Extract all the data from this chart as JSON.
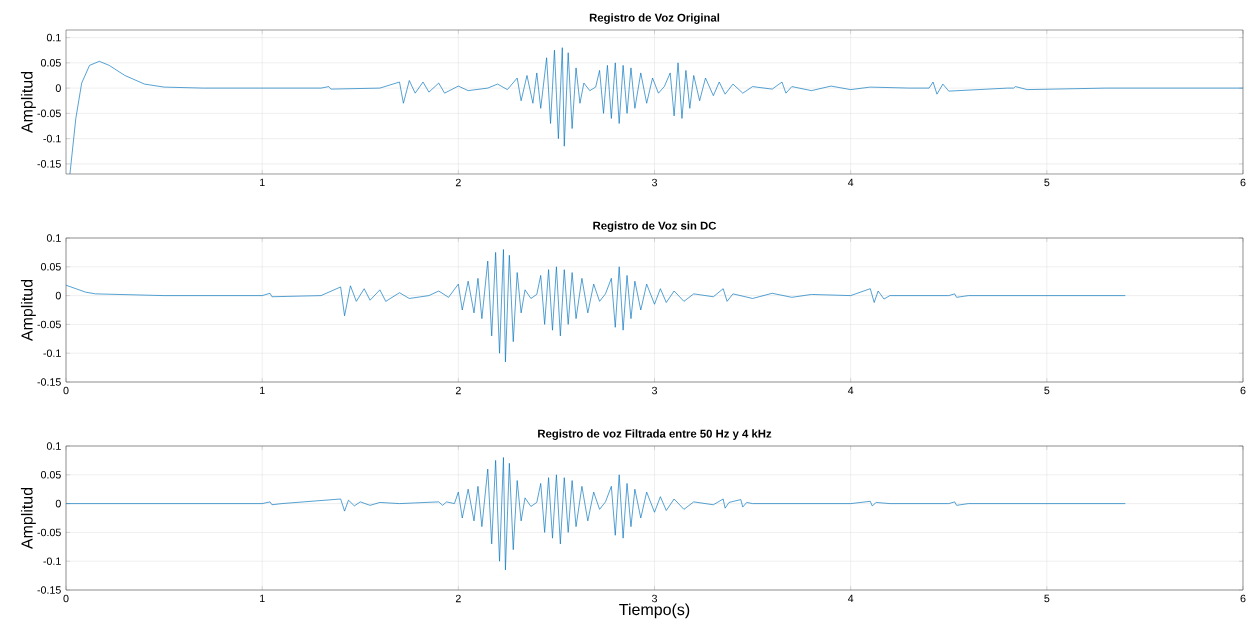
{
  "chart_data": [
    {
      "type": "line",
      "title": "Registro de Voz Original",
      "ylabel": "Amplitud",
      "color": "#0072bd",
      "grid": true,
      "xlim": [
        0,
        6
      ],
      "ylim": [
        -0.17,
        0.115
      ],
      "xticks": [
        1,
        2,
        3,
        4,
        5,
        6
      ],
      "yticks": [
        -0.15,
        -0.1,
        -0.05,
        0,
        0.05,
        0.1
      ],
      "x": [
        0.02,
        0.05,
        0.08,
        0.12,
        0.17,
        0.22,
        0.3,
        0.4,
        0.5,
        0.7,
        1.3,
        1.34,
        1.35,
        1.6,
        1.7,
        1.72,
        1.75,
        1.78,
        1.82,
        1.85,
        1.9,
        1.93,
        2.0,
        2.05,
        2.15,
        2.2,
        2.25,
        2.3,
        2.32,
        2.35,
        2.38,
        2.4,
        2.42,
        2.45,
        2.47,
        2.49,
        2.51,
        2.53,
        2.54,
        2.56,
        2.58,
        2.6,
        2.62,
        2.64,
        2.67,
        2.7,
        2.72,
        2.74,
        2.76,
        2.78,
        2.8,
        2.82,
        2.84,
        2.86,
        2.88,
        2.9,
        2.93,
        2.96,
        2.99,
        3.02,
        3.05,
        3.08,
        3.1,
        3.12,
        3.14,
        3.16,
        3.18,
        3.2,
        3.23,
        3.26,
        3.3,
        3.33,
        3.36,
        3.4,
        3.45,
        3.5,
        3.6,
        3.65,
        3.67,
        3.7,
        3.8,
        3.9,
        4.0,
        4.1,
        4.3,
        4.4,
        4.42,
        4.44,
        4.47,
        4.5,
        4.8,
        4.83,
        4.84,
        4.9,
        5.3,
        5.7,
        6.0
      ],
      "values": [
        -0.17,
        -0.06,
        0.01,
        0.045,
        0.053,
        0.045,
        0.025,
        0.008,
        0.002,
        0,
        0,
        0.003,
        -0.002,
        0,
        0.012,
        -0.03,
        0.015,
        -0.01,
        0.012,
        -0.008,
        0.01,
        -0.01,
        0.004,
        -0.005,
        0,
        0.008,
        -0.003,
        0.02,
        -0.025,
        0.025,
        -0.03,
        0.03,
        -0.04,
        0.06,
        -0.07,
        0.075,
        -0.1,
        0.08,
        -0.115,
        0.07,
        -0.08,
        0.04,
        -0.03,
        0.01,
        -0.005,
        0.002,
        0.035,
        -0.05,
        0.045,
        -0.06,
        0.05,
        -0.07,
        0.045,
        -0.05,
        0.04,
        -0.04,
        0.03,
        -0.03,
        0.02,
        -0.01,
        0.003,
        0.03,
        -0.055,
        0.05,
        -0.06,
        0.035,
        -0.04,
        0.025,
        -0.025,
        0.02,
        -0.015,
        0.012,
        -0.012,
        0.008,
        -0.01,
        0.003,
        -0.002,
        0.012,
        -0.01,
        0.003,
        -0.005,
        0.004,
        -0.003,
        0.002,
        0,
        0,
        0.012,
        -0.012,
        0.008,
        -0.006,
        0,
        0,
        0.003,
        -0.003,
        0,
        0,
        0
      ]
    },
    {
      "type": "line",
      "title": "Registro de Voz sin DC",
      "ylabel": "Amplitud",
      "color": "#0072bd",
      "grid": true,
      "xlim": [
        0,
        6
      ],
      "ylim": [
        -0.15,
        0.1
      ],
      "xticks": [
        0,
        1,
        2,
        3,
        4,
        5,
        6
      ],
      "yticks": [
        -0.15,
        -0.1,
        -0.05,
        0,
        0.05,
        0.1
      ],
      "x": [
        0,
        0.05,
        0.1,
        0.15,
        0.5,
        1.0,
        1.04,
        1.05,
        1.3,
        1.4,
        1.42,
        1.45,
        1.48,
        1.52,
        1.55,
        1.6,
        1.63,
        1.7,
        1.75,
        1.85,
        1.9,
        1.95,
        2.0,
        2.02,
        2.05,
        2.08,
        2.1,
        2.12,
        2.15,
        2.17,
        2.19,
        2.21,
        2.23,
        2.24,
        2.26,
        2.28,
        2.3,
        2.32,
        2.34,
        2.37,
        2.4,
        2.42,
        2.44,
        2.46,
        2.48,
        2.5,
        2.52,
        2.54,
        2.56,
        2.58,
        2.6,
        2.63,
        2.66,
        2.69,
        2.72,
        2.75,
        2.78,
        2.8,
        2.82,
        2.84,
        2.86,
        2.88,
        2.9,
        2.93,
        2.96,
        3.0,
        3.03,
        3.06,
        3.1,
        3.15,
        3.2,
        3.3,
        3.35,
        3.37,
        3.4,
        3.5,
        3.6,
        3.7,
        3.8,
        4.0,
        4.1,
        4.12,
        4.14,
        4.17,
        4.2,
        4.5,
        4.53,
        4.54,
        4.6,
        5.0,
        5.4
      ],
      "values": [
        0.018,
        0.012,
        0.006,
        0.003,
        0,
        0,
        0.004,
        -0.002,
        0,
        0.015,
        -0.035,
        0.017,
        -0.01,
        0.012,
        -0.008,
        0.01,
        -0.01,
        0.005,
        -0.005,
        0,
        0.008,
        -0.003,
        0.02,
        -0.025,
        0.025,
        -0.03,
        0.03,
        -0.04,
        0.06,
        -0.07,
        0.075,
        -0.1,
        0.08,
        -0.115,
        0.07,
        -0.08,
        0.04,
        -0.03,
        0.01,
        -0.005,
        0.002,
        0.035,
        -0.05,
        0.045,
        -0.06,
        0.05,
        -0.07,
        0.045,
        -0.05,
        0.04,
        -0.04,
        0.03,
        -0.03,
        0.02,
        -0.01,
        0.003,
        0.03,
        -0.055,
        0.05,
        -0.06,
        0.035,
        -0.04,
        0.025,
        -0.025,
        0.02,
        -0.015,
        0.012,
        -0.012,
        0.008,
        -0.01,
        0.003,
        -0.002,
        0.012,
        -0.01,
        0.003,
        -0.005,
        0.004,
        -0.003,
        0.002,
        0,
        0.012,
        -0.012,
        0.008,
        -0.006,
        0,
        0,
        0.003,
        -0.003,
        0,
        0,
        0
      ]
    },
    {
      "type": "line",
      "title": "Registro de voz Filtrada entre 50 Hz y 4 kHz",
      "xlabel": "Tiempo(s)",
      "ylabel": "Amplitud",
      "color": "#0072bd",
      "grid": true,
      "xlim": [
        0,
        6
      ],
      "ylim": [
        -0.15,
        0.1
      ],
      "xticks": [
        0,
        1,
        2,
        3,
        4,
        5,
        6
      ],
      "yticks": [
        -0.15,
        -0.1,
        -0.05,
        0,
        0.05,
        0.1
      ],
      "x": [
        0,
        1.0,
        1.04,
        1.05,
        1.1,
        1.4,
        1.42,
        1.44,
        1.47,
        1.5,
        1.55,
        1.6,
        1.7,
        1.9,
        1.92,
        1.94,
        1.98,
        2.0,
        2.02,
        2.05,
        2.08,
        2.1,
        2.12,
        2.15,
        2.17,
        2.19,
        2.21,
        2.23,
        2.24,
        2.26,
        2.28,
        2.3,
        2.32,
        2.34,
        2.37,
        2.4,
        2.42,
        2.44,
        2.46,
        2.48,
        2.5,
        2.52,
        2.54,
        2.56,
        2.58,
        2.6,
        2.63,
        2.66,
        2.69,
        2.72,
        2.75,
        2.78,
        2.8,
        2.82,
        2.84,
        2.86,
        2.88,
        2.9,
        2.93,
        2.96,
        3.0,
        3.03,
        3.06,
        3.1,
        3.15,
        3.2,
        3.3,
        3.35,
        3.36,
        3.38,
        3.44,
        3.45,
        3.47,
        3.5,
        4.0,
        4.1,
        4.11,
        4.13,
        4.2,
        4.5,
        4.53,
        4.54,
        4.6,
        5.0,
        5.4
      ],
      "values": [
        0,
        0,
        0.003,
        -0.002,
        0,
        0.008,
        -0.013,
        0.006,
        -0.004,
        0.003,
        -0.003,
        0.002,
        0,
        0.003,
        -0.003,
        0.003,
        0,
        0.02,
        -0.025,
        0.025,
        -0.03,
        0.03,
        -0.04,
        0.06,
        -0.07,
        0.075,
        -0.1,
        0.08,
        -0.115,
        0.07,
        -0.08,
        0.04,
        -0.03,
        0.01,
        -0.005,
        0.002,
        0.035,
        -0.05,
        0.045,
        -0.06,
        0.05,
        -0.07,
        0.045,
        -0.05,
        0.04,
        -0.04,
        0.03,
        -0.03,
        0.02,
        -0.01,
        0.003,
        0.03,
        -0.055,
        0.05,
        -0.06,
        0.035,
        -0.04,
        0.025,
        -0.025,
        0.02,
        -0.015,
        0.012,
        -0.012,
        0.008,
        -0.01,
        0.003,
        -0.002,
        0.008,
        -0.008,
        0.002,
        0.007,
        -0.006,
        0.002,
        0,
        0,
        0.004,
        -0.004,
        0.002,
        0,
        0,
        0.003,
        -0.003,
        0,
        0,
        0
      ]
    }
  ]
}
